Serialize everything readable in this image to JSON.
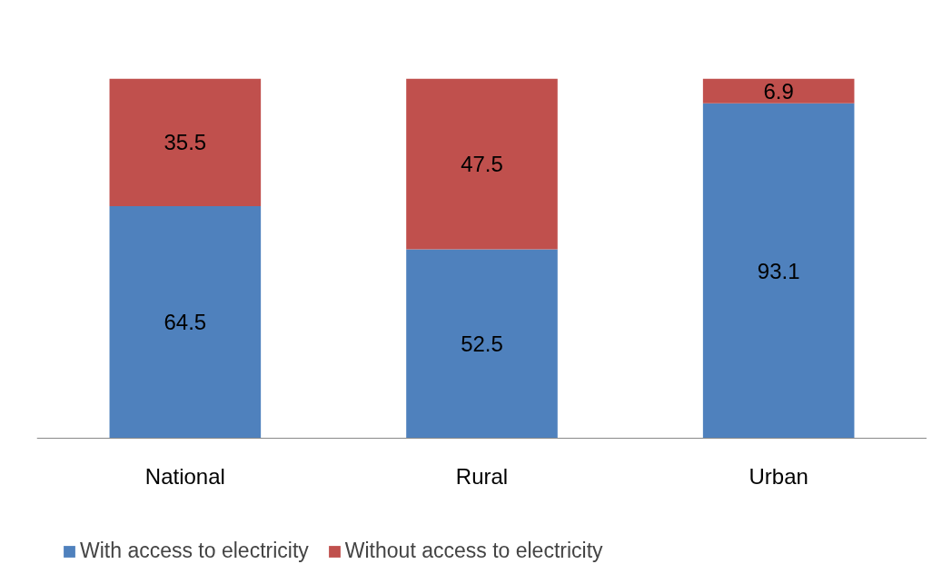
{
  "chart_data": {
    "type": "bar",
    "stacked": true,
    "categories": [
      "National",
      "Rural",
      "Urban"
    ],
    "series": [
      {
        "name": "With access to electricity",
        "color": "#4f81bd",
        "values": [
          64.5,
          52.5,
          93.1
        ]
      },
      {
        "name": "Without access to electricity",
        "color": "#c0504d",
        "values": [
          35.5,
          47.5,
          6.9
        ]
      }
    ],
    "data_labels": true,
    "legend": "bottom",
    "grid": false
  }
}
